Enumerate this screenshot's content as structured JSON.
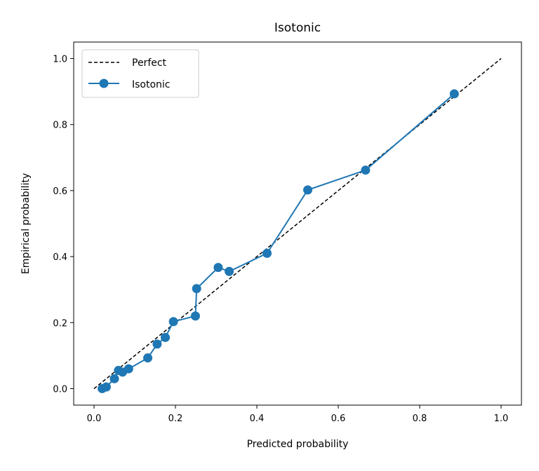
{
  "chart_data": {
    "type": "line",
    "title": "Isotonic",
    "xlabel": "Predicted probability",
    "ylabel": "Empirical probability",
    "xlim": [
      -0.05,
      1.05
    ],
    "ylim": [
      -0.05,
      1.05
    ],
    "xticks": [
      "0.0",
      "0.2",
      "0.4",
      "0.6",
      "0.8",
      "1.0"
    ],
    "yticks": [
      "0.0",
      "0.2",
      "0.4",
      "0.6",
      "0.8",
      "1.0"
    ],
    "grid": false,
    "legend": "top-left",
    "series": [
      {
        "name": "Perfect",
        "style": "dashed",
        "color": "#000000",
        "x": [
          0.0,
          1.0
        ],
        "y": [
          0.0,
          1.0
        ]
      },
      {
        "name": "Isotonic",
        "style": "solid-marker",
        "color": "#1f77b4",
        "x": [
          0.02,
          0.03,
          0.05,
          0.06,
          0.07,
          0.085,
          0.132,
          0.155,
          0.175,
          0.195,
          0.249,
          0.252,
          0.305,
          0.332,
          0.425,
          0.525,
          0.667,
          0.885
        ],
        "y": [
          0.0,
          0.005,
          0.03,
          0.055,
          0.05,
          0.06,
          0.093,
          0.135,
          0.155,
          0.203,
          0.22,
          0.303,
          0.367,
          0.355,
          0.41,
          0.602,
          0.662,
          0.893
        ]
      }
    ]
  }
}
